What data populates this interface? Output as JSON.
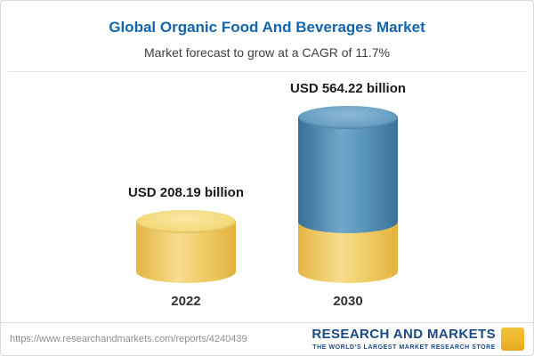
{
  "header": {
    "title": "Global Organic Food And Beverages Market",
    "subtitle": "Market forecast to grow at a CAGR of 11.7%"
  },
  "chart_data": {
    "type": "bar",
    "title": "Global Organic Food And Beverages Market",
    "subtitle": "Market forecast to grow at a CAGR of 11.7%",
    "cagr_percent": 11.7,
    "categories": [
      "2022",
      "2030"
    ],
    "values": [
      208.19,
      564.22
    ],
    "value_labels": [
      "USD 208.19 billion",
      "USD 564.22 billion"
    ],
    "unit": "USD billion",
    "ylim": [
      0,
      600
    ],
    "legend_position": "none",
    "grid": false,
    "bar_colors": [
      "#f2cf68",
      "#4e8ab5"
    ],
    "bar_style": "3d-cylinder"
  },
  "footer": {
    "url": "https://www.researchandmarkets.com/reports/4240439",
    "logo_line1": "RESEARCH AND MARKETS",
    "logo_tagline": "THE WORLD'S LARGEST MARKET RESEARCH STORE"
  },
  "colors": {
    "title_blue": "#1565ad",
    "bar_yellow": "#f2cf68",
    "bar_blue": "#4e8ab5",
    "logo_navy": "#1b4a85",
    "logo_gold": "#edb52f"
  }
}
